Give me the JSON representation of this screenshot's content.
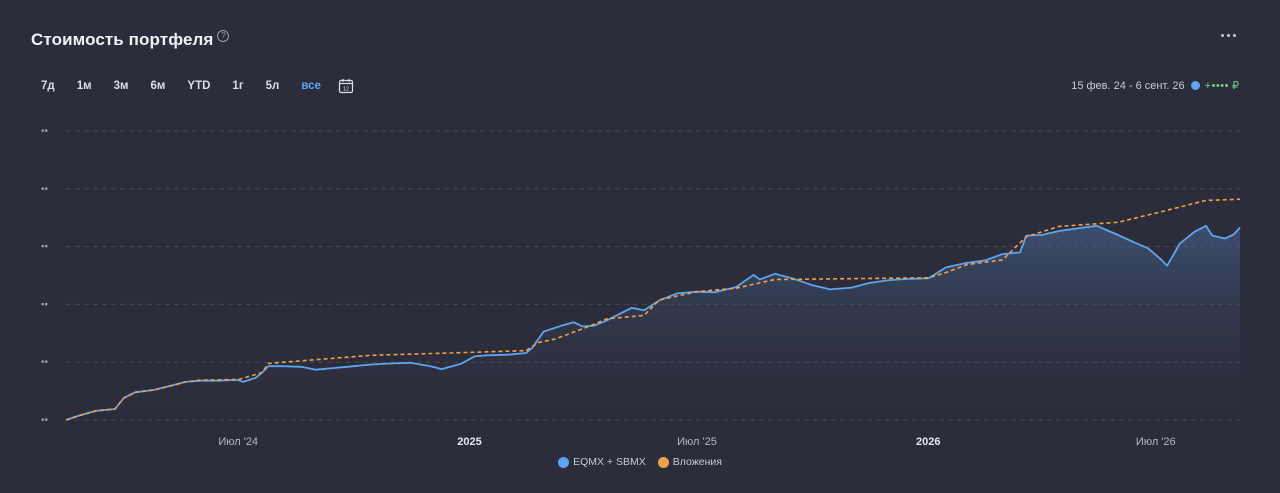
{
  "header": {
    "title": "Стоимость портфеля",
    "help_icon": "question-circle-icon",
    "more_icon": "more-horizontal-icon"
  },
  "periods": [
    {
      "label": "7д",
      "active": false
    },
    {
      "label": "1м",
      "active": false
    },
    {
      "label": "3м",
      "active": false
    },
    {
      "label": "6м",
      "active": false
    },
    {
      "label": "YTD",
      "active": false
    },
    {
      "label": "1г",
      "active": false
    },
    {
      "label": "5л",
      "active": false
    },
    {
      "label": "все",
      "active": true
    }
  ],
  "calendar_icon": "calendar-icon",
  "range": {
    "label": "15 фев. 24 - 6 сент. 26",
    "masked_value": "+••••",
    "currency": "₽"
  },
  "colors": {
    "background": "#2c2d3a",
    "portfolio": "#5ea3ec",
    "invested": "#f0a04b",
    "accent_green": "#6fcf8a",
    "active_period": "#5ea3ec"
  },
  "chart_data": {
    "type": "line",
    "y_tick_labels": [
      "••",
      "••",
      "••",
      "••",
      "••",
      "••"
    ],
    "x_tick_labels": [
      "Июл '24",
      "2025",
      "Июл '25",
      "2026",
      "Июл '26"
    ],
    "x_range": [
      "2024-02-15",
      "2026-09-06"
    ],
    "y_range": [
      0,
      50
    ],
    "grid": true,
    "legend_position": "bottom",
    "series": [
      {
        "name": "EQMX + SBMX",
        "color": "#5ea3ec",
        "style": "solid-area",
        "points": [
          [
            "2024-02-15",
            0.0
          ],
          [
            "2024-02-26",
            0.8
          ],
          [
            "2024-03-10",
            1.6
          ],
          [
            "2024-03-25",
            1.9
          ],
          [
            "2024-04-01",
            3.8
          ],
          [
            "2024-04-10",
            4.8
          ],
          [
            "2024-04-25",
            5.2
          ],
          [
            "2024-05-10",
            6.0
          ],
          [
            "2024-05-20",
            6.6
          ],
          [
            "2024-06-01",
            6.8
          ],
          [
            "2024-06-15",
            6.8
          ],
          [
            "2024-06-25",
            6.9
          ],
          [
            "2024-07-01",
            6.9
          ],
          [
            "2024-07-05",
            6.6
          ],
          [
            "2024-07-15",
            7.3
          ],
          [
            "2024-07-20",
            8.2
          ],
          [
            "2024-07-25",
            9.3
          ],
          [
            "2024-08-05",
            9.3
          ],
          [
            "2024-08-20",
            9.2
          ],
          [
            "2024-09-01",
            8.7
          ],
          [
            "2024-09-10",
            8.9
          ],
          [
            "2024-10-01",
            9.3
          ],
          [
            "2024-10-15",
            9.6
          ],
          [
            "2024-11-01",
            9.8
          ],
          [
            "2024-11-15",
            9.9
          ],
          [
            "2024-12-01",
            9.3
          ],
          [
            "2024-12-10",
            8.8
          ],
          [
            "2024-12-25",
            9.7
          ],
          [
            "2025-01-05",
            11.0
          ],
          [
            "2025-01-15",
            11.2
          ],
          [
            "2025-02-01",
            11.3
          ],
          [
            "2025-02-15",
            11.6
          ],
          [
            "2025-02-20",
            12.5
          ],
          [
            "2025-03-01",
            15.3
          ],
          [
            "2025-03-15",
            16.3
          ],
          [
            "2025-03-25",
            16.9
          ],
          [
            "2025-04-01",
            16.2
          ],
          [
            "2025-04-10",
            16.3
          ],
          [
            "2025-04-20",
            17.2
          ],
          [
            "2025-05-01",
            18.4
          ],
          [
            "2025-05-10",
            19.4
          ],
          [
            "2025-05-20",
            19.0
          ],
          [
            "2025-06-01",
            20.7
          ],
          [
            "2025-06-15",
            21.9
          ],
          [
            "2025-07-01",
            22.2
          ],
          [
            "2025-07-15",
            22.1
          ],
          [
            "2025-08-01",
            23.0
          ],
          [
            "2025-08-15",
            25.1
          ],
          [
            "2025-08-20",
            24.3
          ],
          [
            "2025-09-01",
            25.3
          ],
          [
            "2025-09-15",
            24.5
          ],
          [
            "2025-10-01",
            23.3
          ],
          [
            "2025-10-15",
            22.6
          ],
          [
            "2025-11-01",
            22.9
          ],
          [
            "2025-11-15",
            23.7
          ],
          [
            "2025-12-01",
            24.2
          ],
          [
            "2025-12-15",
            24.4
          ],
          [
            "2026-01-01",
            24.5
          ],
          [
            "2026-01-15",
            26.4
          ],
          [
            "2026-02-01",
            27.2
          ],
          [
            "2026-02-15",
            27.6
          ],
          [
            "2026-03-01",
            28.7
          ],
          [
            "2026-03-15",
            29.0
          ],
          [
            "2026-03-20",
            31.9
          ],
          [
            "2026-04-01",
            32.0
          ],
          [
            "2026-04-15",
            32.7
          ],
          [
            "2026-05-01",
            33.2
          ],
          [
            "2026-05-15",
            33.6
          ],
          [
            "2026-06-01",
            32.0
          ],
          [
            "2026-06-15",
            30.6
          ],
          [
            "2026-06-25",
            29.7
          ],
          [
            "2026-07-05",
            27.8
          ],
          [
            "2026-07-10",
            26.7
          ],
          [
            "2026-07-20",
            30.5
          ],
          [
            "2026-08-01",
            32.6
          ],
          [
            "2026-08-10",
            33.6
          ],
          [
            "2026-08-15",
            31.9
          ],
          [
            "2026-08-25",
            31.4
          ],
          [
            "2026-09-01",
            32.1
          ],
          [
            "2026-09-06",
            33.3
          ]
        ]
      },
      {
        "name": "Вложения",
        "color": "#f0a04b",
        "style": "dashed",
        "points": [
          [
            "2024-02-15",
            0.0
          ],
          [
            "2024-02-26",
            0.8
          ],
          [
            "2024-03-10",
            1.6
          ],
          [
            "2024-03-25",
            1.9
          ],
          [
            "2024-04-01",
            3.8
          ],
          [
            "2024-04-10",
            4.8
          ],
          [
            "2024-04-25",
            5.2
          ],
          [
            "2024-05-10",
            6.0
          ],
          [
            "2024-05-20",
            6.6
          ],
          [
            "2024-06-01",
            6.9
          ],
          [
            "2024-07-01",
            7.0
          ],
          [
            "2024-07-20",
            8.2
          ],
          [
            "2024-07-25",
            9.8
          ],
          [
            "2024-10-15",
            11.2
          ],
          [
            "2025-01-01",
            11.7
          ],
          [
            "2025-02-15",
            12.0
          ],
          [
            "2025-02-25",
            13.4
          ],
          [
            "2025-03-10",
            14.0
          ],
          [
            "2025-04-05",
            16.1
          ],
          [
            "2025-04-20",
            17.5
          ],
          [
            "2025-05-20",
            18.1
          ],
          [
            "2025-06-01",
            20.8
          ],
          [
            "2025-07-01",
            22.2
          ],
          [
            "2025-08-01",
            22.8
          ],
          [
            "2025-09-01",
            24.3
          ],
          [
            "2026-01-01",
            24.6
          ],
          [
            "2026-01-15",
            25.5
          ],
          [
            "2026-02-01",
            26.9
          ],
          [
            "2026-03-01",
            27.7
          ],
          [
            "2026-03-20",
            31.7
          ],
          [
            "2026-04-15",
            33.5
          ],
          [
            "2026-06-01",
            34.2
          ],
          [
            "2026-07-01",
            35.8
          ],
          [
            "2026-08-10",
            38.0
          ],
          [
            "2026-09-06",
            38.2
          ]
        ]
      }
    ]
  },
  "legend": [
    {
      "label": "EQMX + SBMX",
      "color": "#5ea3ec"
    },
    {
      "label": "Вложения",
      "color": "#f0a04b"
    }
  ]
}
